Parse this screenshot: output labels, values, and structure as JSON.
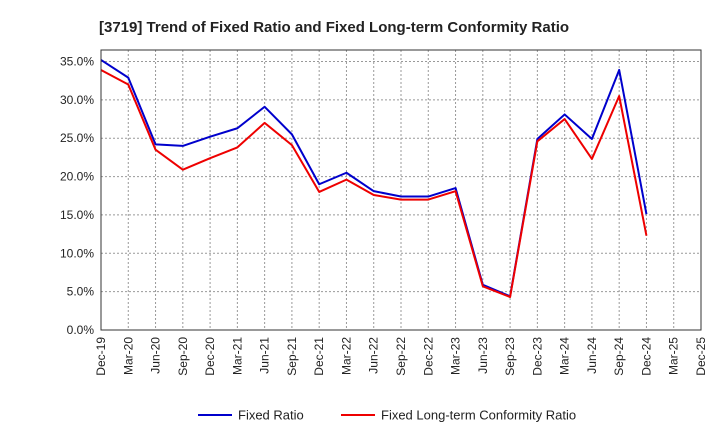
{
  "chart_data": {
    "type": "line",
    "title": "[3719]  Trend of Fixed Ratio and Fixed Long-term Conformity Ratio",
    "xlabel": "",
    "ylabel": "",
    "x_ticks": [
      "Dec-19",
      "Mar-20",
      "Jun-20",
      "Sep-20",
      "Dec-20",
      "Mar-21",
      "Jun-21",
      "Sep-21",
      "Dec-21",
      "Mar-22",
      "Jun-22",
      "Sep-22",
      "Dec-22",
      "Mar-23",
      "Jun-23",
      "Sep-23",
      "Dec-23",
      "Mar-24",
      "Jun-24",
      "Sep-24",
      "Dec-24",
      "Mar-25",
      "Dec-25"
    ],
    "categories": [
      "Dec-19",
      "Mar-20",
      "Jun-20",
      "Sep-20",
      "Dec-20",
      "Mar-21",
      "Jun-21",
      "Sep-21",
      "Dec-21",
      "Mar-22",
      "Jun-22",
      "Sep-22",
      "Dec-22",
      "Mar-23",
      "Jun-23",
      "Sep-23",
      "Dec-23",
      "Mar-24",
      "Jun-24",
      "Sep-24",
      "Dec-24"
    ],
    "y_ticks": [
      "0.0%",
      "5.0%",
      "10.0%",
      "15.0%",
      "20.0%",
      "25.0%",
      "30.0%",
      "35.0%"
    ],
    "ylim": [
      0,
      36.5
    ],
    "grid": "dashed",
    "legend": "bottom",
    "series": [
      {
        "name": "Fixed Ratio",
        "color": "#0000cc",
        "values": [
          35.2,
          32.9,
          24.2,
          24.0,
          25.2,
          26.3,
          29.1,
          25.5,
          19.0,
          20.5,
          18.1,
          17.4,
          17.4,
          18.5,
          5.9,
          4.4,
          24.9,
          28.1,
          24.9,
          33.9,
          15.1
        ]
      },
      {
        "name": "Fixed Long-term Conformity Ratio",
        "color": "#ee0000",
        "values": [
          33.9,
          32.0,
          23.5,
          20.9,
          22.4,
          23.8,
          27.0,
          24.1,
          18.0,
          19.6,
          17.6,
          17.0,
          17.0,
          18.1,
          5.7,
          4.3,
          24.6,
          27.5,
          22.3,
          30.5,
          12.3
        ]
      }
    ]
  }
}
